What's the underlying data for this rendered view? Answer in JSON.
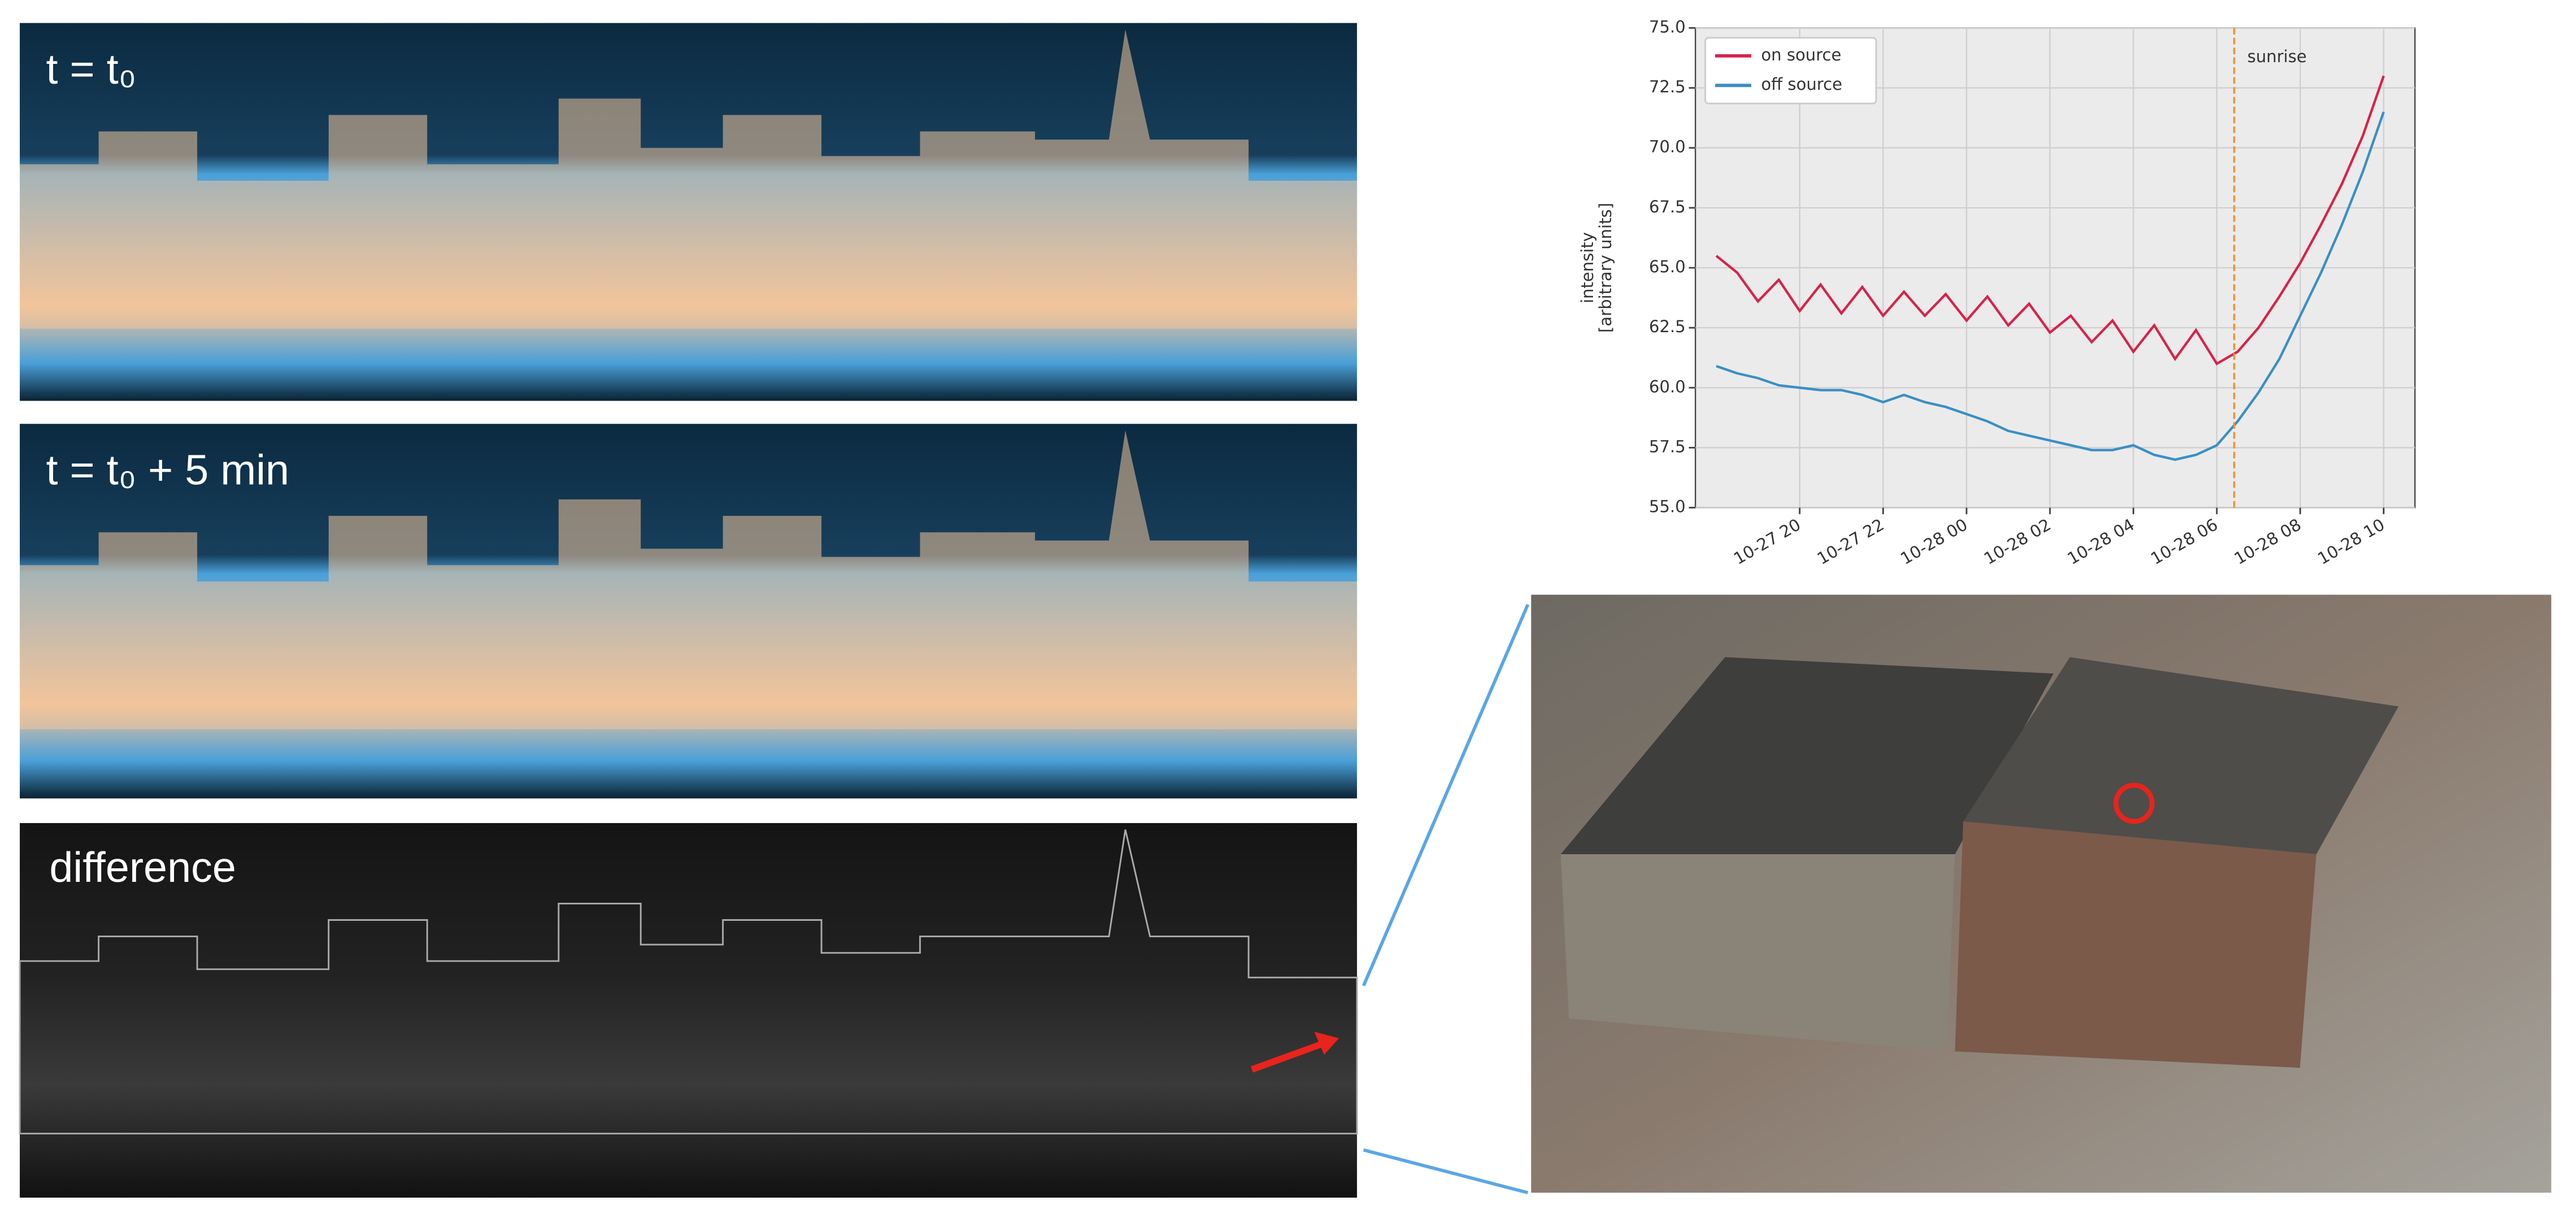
{
  "panels": [
    {
      "label": "t = t₀"
    },
    {
      "label": "t = t₀ + 5 min"
    },
    {
      "label": "difference"
    }
  ],
  "chart_data": {
    "type": "line",
    "ylabel": [
      "intensity",
      "[arbitrary units]"
    ],
    "x": [
      "10-27 18:00",
      "10-27 18:30",
      "10-27 19:00",
      "10-27 19:30",
      "10-27 20:00",
      "10-27 20:30",
      "10-27 21:00",
      "10-27 21:30",
      "10-27 22:00",
      "10-27 22:30",
      "10-27 23:00",
      "10-27 23:30",
      "10-28 00:00",
      "10-28 00:30",
      "10-28 01:00",
      "10-28 01:30",
      "10-28 02:00",
      "10-28 02:30",
      "10-28 03:00",
      "10-28 03:30",
      "10-28 04:00",
      "10-28 04:30",
      "10-28 05:00",
      "10-28 05:30",
      "10-28 06:00",
      "10-28 06:30",
      "10-28 07:00",
      "10-28 07:30",
      "10-28 08:00",
      "10-28 08:30",
      "10-28 09:00",
      "10-28 09:30",
      "10-28 10:00"
    ],
    "series": [
      {
        "name": "on source",
        "color": "#d6234a",
        "values": [
          65.5,
          64.8,
          63.6,
          64.5,
          63.2,
          64.3,
          63.1,
          64.2,
          63.0,
          64.0,
          63.0,
          63.9,
          62.8,
          63.8,
          62.6,
          63.5,
          62.3,
          63.0,
          61.9,
          62.8,
          61.5,
          62.6,
          61.2,
          62.4,
          61.0,
          61.5,
          62.5,
          63.8,
          65.2,
          66.8,
          68.5,
          70.5,
          73.0
        ]
      },
      {
        "name": "off source",
        "color": "#3a8fc4",
        "values": [
          60.9,
          60.6,
          60.4,
          60.1,
          60.0,
          59.9,
          59.9,
          59.7,
          59.4,
          59.7,
          59.4,
          59.2,
          58.9,
          58.6,
          58.2,
          58.0,
          57.8,
          57.6,
          57.4,
          57.4,
          57.6,
          57.2,
          57.0,
          57.2,
          57.6,
          58.6,
          59.8,
          61.2,
          63.0,
          64.8,
          66.8,
          69.0,
          71.5
        ]
      }
    ],
    "xlim": [
      "10-27 17:30",
      "10-28 10:45"
    ],
    "xticks": [
      "10-27 20",
      "10-27 22",
      "10-28 00",
      "10-28 02",
      "10-28 04",
      "10-28 06",
      "10-28 08",
      "10-28 10"
    ],
    "ylim": [
      55,
      75
    ],
    "yticks": [
      {
        "value": 55,
        "label": "55.0"
      },
      {
        "value": 57.5,
        "label": "57.5"
      },
      {
        "value": 60,
        "label": "60.0"
      },
      {
        "value": 62.5,
        "label": "62.5"
      },
      {
        "value": 65,
        "label": "65.0"
      },
      {
        "value": 67.5,
        "label": "67.5"
      },
      {
        "value": 70,
        "label": "70.0"
      },
      {
        "value": 72.5,
        "label": "72.5"
      },
      {
        "value": 75,
        "label": "75.0"
      }
    ],
    "grid": true,
    "legend": "upper left",
    "annotation": {
      "text": "sunrise",
      "x": "10-28 06:25",
      "color": "#f0932b"
    }
  }
}
